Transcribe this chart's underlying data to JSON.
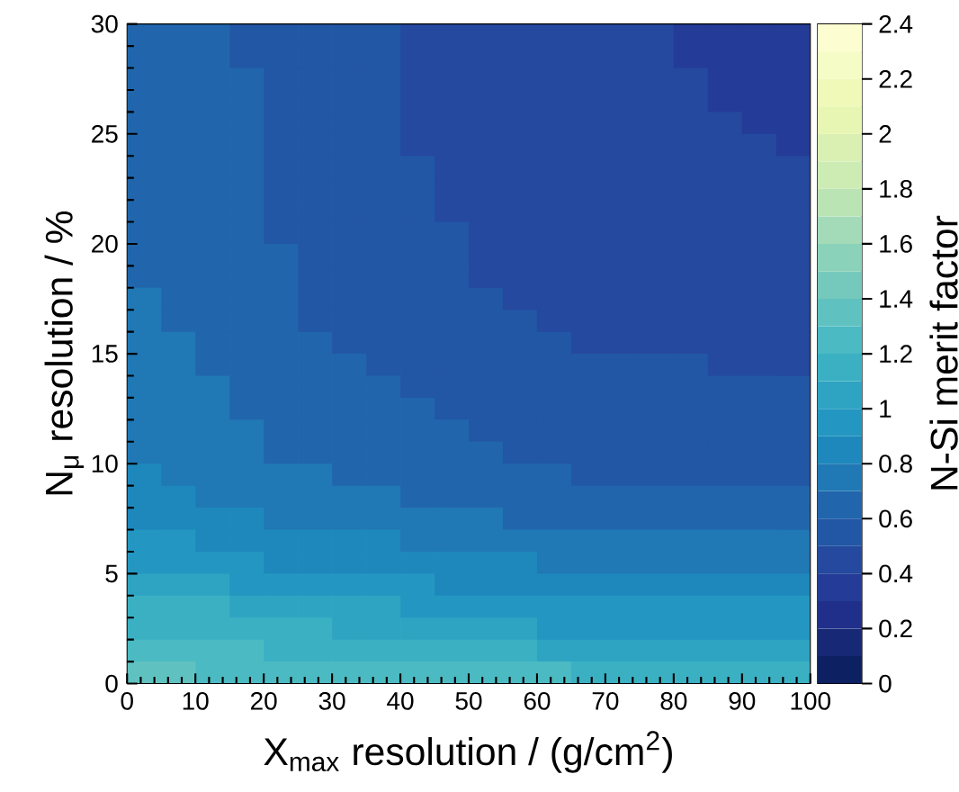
{
  "chart_data": {
    "type": "heatmap",
    "xlabel": "X$_{max}$ resolution / (g/cm$^{2}$)",
    "ylabel": "N$_{μ}$ resolution / %",
    "clabel": "N-Si merit factor",
    "x": [
      2.5,
      7.5,
      12.5,
      17.5,
      22.5,
      27.5,
      32.5,
      37.5,
      42.5,
      47.5,
      52.5,
      57.5,
      62.5,
      67.5,
      72.5,
      77.5,
      82.5,
      87.5,
      92.5,
      97.5
    ],
    "y": [
      29.5,
      28.5,
      27.5,
      26.5,
      25.5,
      24.5,
      23.5,
      22.5,
      21.5,
      20.5,
      19.5,
      18.5,
      17.5,
      16.5,
      15.5,
      14.5,
      13.5,
      12.5,
      11.5,
      10.5,
      9.5,
      8.5,
      7.5,
      6.5,
      5.5,
      4.5,
      3.5,
      2.5,
      1.5,
      0.5
    ],
    "xlim": [
      0,
      100
    ],
    "xticks": [
      0,
      10,
      20,
      30,
      40,
      50,
      60,
      70,
      80,
      90,
      100
    ],
    "ylim": [
      0,
      30
    ],
    "yticks": [
      0,
      5,
      10,
      15,
      20,
      25,
      30
    ],
    "clim": [
      0,
      2.4
    ],
    "cticks": [
      0,
      0.2,
      0.4,
      0.6,
      0.8,
      1,
      1.2,
      1.4,
      1.6,
      1.8,
      2,
      2.2,
      2.4
    ],
    "cells": [
      [
        0.65,
        0.65,
        0.65,
        0.55,
        0.55,
        0.55,
        0.55,
        0.55,
        0.45,
        0.45,
        0.45,
        0.45,
        0.45,
        0.45,
        0.45,
        0.45,
        0.35,
        0.35,
        0.35,
        0.35
      ],
      [
        0.65,
        0.65,
        0.65,
        0.55,
        0.55,
        0.55,
        0.55,
        0.55,
        0.45,
        0.45,
        0.45,
        0.45,
        0.45,
        0.45,
        0.45,
        0.45,
        0.35,
        0.35,
        0.35,
        0.35
      ],
      [
        0.65,
        0.65,
        0.65,
        0.65,
        0.55,
        0.55,
        0.55,
        0.55,
        0.45,
        0.45,
        0.45,
        0.45,
        0.45,
        0.45,
        0.45,
        0.45,
        0.45,
        0.35,
        0.35,
        0.35
      ],
      [
        0.65,
        0.65,
        0.65,
        0.65,
        0.55,
        0.55,
        0.55,
        0.55,
        0.45,
        0.45,
        0.45,
        0.45,
        0.45,
        0.45,
        0.45,
        0.45,
        0.45,
        0.35,
        0.35,
        0.35
      ],
      [
        0.65,
        0.65,
        0.65,
        0.65,
        0.55,
        0.55,
        0.55,
        0.55,
        0.45,
        0.45,
        0.45,
        0.45,
        0.45,
        0.45,
        0.45,
        0.45,
        0.45,
        0.45,
        0.35,
        0.35
      ],
      [
        0.65,
        0.65,
        0.65,
        0.65,
        0.55,
        0.55,
        0.55,
        0.55,
        0.45,
        0.45,
        0.45,
        0.45,
        0.45,
        0.45,
        0.45,
        0.45,
        0.45,
        0.45,
        0.45,
        0.35
      ],
      [
        0.65,
        0.65,
        0.65,
        0.65,
        0.55,
        0.55,
        0.55,
        0.55,
        0.55,
        0.45,
        0.45,
        0.45,
        0.45,
        0.45,
        0.45,
        0.45,
        0.45,
        0.45,
        0.45,
        0.45
      ],
      [
        0.65,
        0.65,
        0.65,
        0.65,
        0.55,
        0.55,
        0.55,
        0.55,
        0.55,
        0.45,
        0.45,
        0.45,
        0.45,
        0.45,
        0.45,
        0.45,
        0.45,
        0.45,
        0.45,
        0.45
      ],
      [
        0.65,
        0.65,
        0.65,
        0.65,
        0.55,
        0.55,
        0.55,
        0.55,
        0.55,
        0.45,
        0.45,
        0.45,
        0.45,
        0.45,
        0.45,
        0.45,
        0.45,
        0.45,
        0.45,
        0.45
      ],
      [
        0.65,
        0.65,
        0.65,
        0.65,
        0.55,
        0.55,
        0.55,
        0.55,
        0.55,
        0.55,
        0.45,
        0.45,
        0.45,
        0.45,
        0.45,
        0.45,
        0.45,
        0.45,
        0.45,
        0.45
      ],
      [
        0.65,
        0.65,
        0.65,
        0.65,
        0.65,
        0.55,
        0.55,
        0.55,
        0.55,
        0.55,
        0.45,
        0.45,
        0.45,
        0.45,
        0.45,
        0.45,
        0.45,
        0.45,
        0.45,
        0.45
      ],
      [
        0.65,
        0.65,
        0.65,
        0.65,
        0.65,
        0.55,
        0.55,
        0.55,
        0.55,
        0.55,
        0.45,
        0.45,
        0.45,
        0.45,
        0.45,
        0.45,
        0.45,
        0.45,
        0.45,
        0.45
      ],
      [
        0.75,
        0.65,
        0.65,
        0.65,
        0.65,
        0.55,
        0.55,
        0.55,
        0.55,
        0.55,
        0.55,
        0.45,
        0.45,
        0.45,
        0.45,
        0.45,
        0.45,
        0.45,
        0.45,
        0.45
      ],
      [
        0.75,
        0.65,
        0.65,
        0.65,
        0.65,
        0.55,
        0.55,
        0.55,
        0.55,
        0.55,
        0.55,
        0.55,
        0.45,
        0.45,
        0.45,
        0.45,
        0.45,
        0.45,
        0.45,
        0.45
      ],
      [
        0.75,
        0.75,
        0.65,
        0.65,
        0.65,
        0.65,
        0.55,
        0.55,
        0.55,
        0.55,
        0.55,
        0.55,
        0.55,
        0.45,
        0.45,
        0.45,
        0.45,
        0.45,
        0.45,
        0.45
      ],
      [
        0.75,
        0.75,
        0.65,
        0.65,
        0.65,
        0.65,
        0.65,
        0.55,
        0.55,
        0.55,
        0.55,
        0.55,
        0.55,
        0.55,
        0.55,
        0.55,
        0.55,
        0.45,
        0.45,
        0.45
      ],
      [
        0.75,
        0.75,
        0.75,
        0.65,
        0.65,
        0.65,
        0.65,
        0.65,
        0.55,
        0.55,
        0.55,
        0.55,
        0.55,
        0.55,
        0.55,
        0.55,
        0.55,
        0.55,
        0.55,
        0.55
      ],
      [
        0.75,
        0.75,
        0.75,
        0.65,
        0.65,
        0.65,
        0.65,
        0.65,
        0.65,
        0.55,
        0.55,
        0.55,
        0.55,
        0.55,
        0.55,
        0.55,
        0.55,
        0.55,
        0.55,
        0.55
      ],
      [
        0.75,
        0.75,
        0.75,
        0.75,
        0.65,
        0.65,
        0.65,
        0.65,
        0.65,
        0.65,
        0.55,
        0.55,
        0.55,
        0.55,
        0.55,
        0.55,
        0.55,
        0.55,
        0.55,
        0.55
      ],
      [
        0.75,
        0.75,
        0.75,
        0.75,
        0.65,
        0.65,
        0.65,
        0.65,
        0.65,
        0.65,
        0.65,
        0.55,
        0.55,
        0.55,
        0.55,
        0.55,
        0.55,
        0.55,
        0.55,
        0.55
      ],
      [
        0.85,
        0.75,
        0.75,
        0.75,
        0.75,
        0.75,
        0.65,
        0.65,
        0.65,
        0.65,
        0.65,
        0.65,
        0.65,
        0.55,
        0.55,
        0.55,
        0.55,
        0.55,
        0.55,
        0.55
      ],
      [
        0.85,
        0.85,
        0.75,
        0.75,
        0.75,
        0.75,
        0.75,
        0.75,
        0.65,
        0.65,
        0.65,
        0.65,
        0.65,
        0.65,
        0.65,
        0.65,
        0.65,
        0.65,
        0.65,
        0.65
      ],
      [
        0.85,
        0.85,
        0.85,
        0.85,
        0.75,
        0.75,
        0.75,
        0.75,
        0.75,
        0.75,
        0.75,
        0.65,
        0.65,
        0.65,
        0.65,
        0.65,
        0.65,
        0.65,
        0.65,
        0.65
      ],
      [
        0.95,
        0.95,
        0.85,
        0.85,
        0.85,
        0.85,
        0.85,
        0.85,
        0.75,
        0.75,
        0.75,
        0.75,
        0.75,
        0.75,
        0.75,
        0.75,
        0.75,
        0.75,
        0.75,
        0.75
      ],
      [
        0.95,
        0.95,
        0.95,
        0.95,
        0.85,
        0.85,
        0.85,
        0.85,
        0.85,
        0.85,
        0.85,
        0.85,
        0.75,
        0.75,
        0.75,
        0.75,
        0.75,
        0.75,
        0.75,
        0.75
      ],
      [
        1.05,
        1.05,
        1.05,
        0.95,
        0.95,
        0.95,
        0.95,
        0.95,
        0.95,
        0.85,
        0.85,
        0.85,
        0.85,
        0.85,
        0.85,
        0.85,
        0.85,
        0.85,
        0.85,
        0.85
      ],
      [
        1.15,
        1.15,
        1.15,
        1.05,
        1.05,
        1.05,
        1.05,
        1.05,
        0.95,
        0.95,
        0.95,
        0.95,
        0.95,
        0.95,
        0.95,
        0.95,
        0.95,
        0.95,
        0.95,
        0.95
      ],
      [
        1.15,
        1.15,
        1.15,
        1.15,
        1.15,
        1.15,
        1.05,
        1.05,
        1.05,
        1.05,
        1.05,
        1.05,
        0.95,
        0.95,
        0.95,
        0.95,
        0.95,
        0.95,
        0.95,
        0.95
      ],
      [
        1.25,
        1.25,
        1.25,
        1.25,
        1.15,
        1.15,
        1.15,
        1.15,
        1.15,
        1.15,
        1.15,
        1.15,
        1.05,
        1.05,
        1.05,
        1.05,
        1.05,
        1.05,
        1.05,
        1.05
      ],
      [
        1.35,
        1.35,
        1.25,
        1.25,
        1.25,
        1.25,
        1.25,
        1.25,
        1.25,
        1.25,
        1.25,
        1.25,
        1.25,
        1.15,
        1.15,
        1.15,
        1.15,
        1.15,
        1.15,
        1.15
      ]
    ]
  }
}
